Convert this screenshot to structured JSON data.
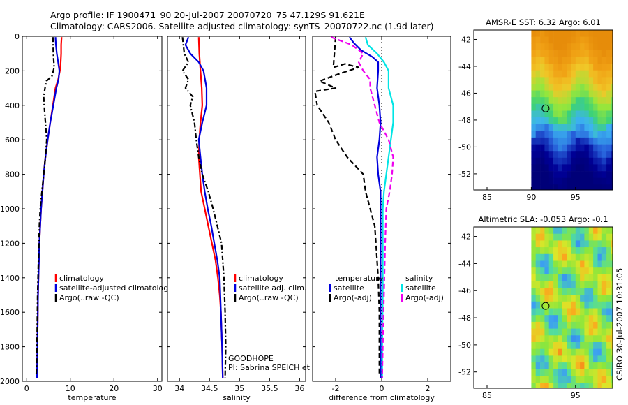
{
  "title": {
    "line1": "Argo profile: IF 1900471_90 20-Jul-2007 20070720_75 47.129S 91.621E",
    "line2": "Climatology: CARS2006. Satellite-adjusted climatology: synTS_20070722.nc (1.9d later)"
  },
  "side_label": "CSIRO 30-Jul-2007 10:31:05",
  "colors": {
    "climatology": "#ff0000",
    "satellite": "#0000dd",
    "argo": "#000000",
    "salinity_satellite": "#00e5e5",
    "salinity_argo": "#ee00ee"
  },
  "chart_data": [
    {
      "type": "line",
      "id": "temperature",
      "xlabel": "temperature",
      "xlim": [
        -1,
        31
      ],
      "ylim": [
        2000,
        0
      ],
      "xticks": [
        0,
        10,
        20,
        30
      ],
      "yticks": [
        0,
        200,
        400,
        600,
        800,
        1000,
        1200,
        1400,
        1600,
        1800,
        2000
      ],
      "ytick_labels": [
        "0",
        "200",
        "400",
        "600",
        "800",
        "1000",
        "1200",
        "1400",
        "1600",
        "1800",
        "2000"
      ],
      "legend": [
        "climatology",
        "satellite-adjusted climatology",
        "Argo(..raw -QC)"
      ],
      "series": [
        {
          "name": "climatology",
          "color": "#ff0000",
          "dash": "",
          "x": [
            8.0,
            7.9,
            7.9,
            7.8,
            7.6,
            7.2,
            6.6,
            6.0,
            5.4,
            4.8,
            4.3,
            3.9,
            3.6,
            3.3,
            3.1,
            2.9,
            2.8,
            2.7,
            2.6,
            2.55,
            2.5,
            2.45,
            2.4,
            2.4
          ],
          "y": [
            5,
            50,
            100,
            150,
            200,
            250,
            300,
            400,
            500,
            600,
            700,
            800,
            900,
            1000,
            1100,
            1200,
            1300,
            1400,
            1500,
            1600,
            1700,
            1800,
            1900,
            1960
          ]
        },
        {
          "name": "satellite-adjusted climatology",
          "color": "#0000dd",
          "dash": "",
          "x": [
            6.6,
            6.7,
            6.9,
            7.2,
            7.5,
            7.3,
            6.8,
            6.1,
            5.4,
            4.8,
            4.3,
            3.9,
            3.6,
            3.3,
            3.1,
            2.9,
            2.8,
            2.7,
            2.6,
            2.55,
            2.5,
            2.45,
            2.4,
            2.35
          ],
          "y": [
            5,
            50,
            100,
            150,
            200,
            250,
            300,
            400,
            500,
            600,
            700,
            800,
            900,
            1000,
            1100,
            1200,
            1300,
            1400,
            1500,
            1600,
            1700,
            1800,
            1900,
            1980
          ]
        },
        {
          "name": "Argo(..raw -QC)",
          "color": "#000000",
          "dash": "7,3,2,3",
          "x": [
            6.0,
            6.1,
            6.3,
            5.8,
            4.5,
            4.2,
            3.9,
            4.0,
            4.3,
            4.6,
            4.3,
            3.9,
            3.5,
            3.1,
            2.9,
            2.8,
            2.7,
            2.6,
            2.5,
            2.45,
            2.4,
            2.35,
            2.3,
            2.2
          ],
          "y": [
            5,
            100,
            180,
            230,
            260,
            300,
            350,
            400,
            500,
            600,
            700,
            800,
            900,
            1000,
            1100,
            1200,
            1300,
            1400,
            1500,
            1600,
            1700,
            1800,
            1900,
            1960
          ]
        }
      ]
    },
    {
      "type": "line",
      "id": "salinity",
      "xlabel": "salinity",
      "xlim": [
        33.8,
        36.1
      ],
      "ylim": [
        2000,
        0
      ],
      "xticks": [
        34,
        34.5,
        35,
        35.5,
        36
      ],
      "xtick_labels": [
        "34",
        "34.5",
        "35",
        "35.5",
        "36"
      ],
      "legend": [
        "climatology",
        "satellite adj. clim.",
        "Argo(..raw -QC)"
      ],
      "annotations": [
        "GOODHOPE",
        "PI: Sabrina SPEICH et Michel ARHAN"
      ],
      "series": [
        {
          "name": "climatology",
          "color": "#ff0000",
          "dash": "",
          "x": [
            34.32,
            34.33,
            34.35,
            34.37,
            34.38,
            34.35,
            34.33,
            34.32,
            34.34,
            34.36,
            34.42,
            34.48,
            34.54,
            34.6,
            34.64,
            34.67,
            34.69,
            34.71,
            34.72
          ],
          "y": [
            5,
            100,
            200,
            300,
            400,
            500,
            600,
            700,
            800,
            900,
            1000,
            1100,
            1200,
            1300,
            1400,
            1500,
            1600,
            1800,
            1980
          ]
        },
        {
          "name": "satellite adj. clim.",
          "color": "#0000dd",
          "dash": "",
          "x": [
            34.15,
            34.1,
            34.18,
            34.32,
            34.4,
            34.45,
            34.45,
            34.38,
            34.32,
            34.35,
            34.38,
            34.42,
            34.47,
            34.53,
            34.58,
            34.63,
            34.67,
            34.69,
            34.71,
            34.72
          ],
          "y": [
            5,
            50,
            100,
            150,
            200,
            300,
            400,
            500,
            600,
            700,
            800,
            900,
            1000,
            1100,
            1200,
            1300,
            1400,
            1600,
            1800,
            1980
          ]
        },
        {
          "name": "Argo(..raw -QC)",
          "color": "#000000",
          "dash": "7,3,2,3",
          "x": [
            34.05,
            34.08,
            34.15,
            34.05,
            34.15,
            34.1,
            34.22,
            34.18,
            34.25,
            34.28,
            34.32,
            34.38,
            34.48,
            34.56,
            34.63,
            34.7,
            34.74,
            34.76,
            34.77,
            34.76
          ],
          "y": [
            5,
            100,
            150,
            200,
            250,
            300,
            350,
            400,
            500,
            600,
            700,
            800,
            900,
            1000,
            1100,
            1200,
            1400,
            1600,
            1800,
            1980
          ]
        }
      ]
    },
    {
      "type": "line",
      "id": "difference",
      "xlabel": "difference from climatology",
      "xlim": [
        -3,
        3
      ],
      "ylim": [
        2000,
        0
      ],
      "xticks": [
        -2,
        0,
        2
      ],
      "xtick_labels": [
        "-2",
        "0",
        "2"
      ],
      "zero_line": true,
      "legend_temperature_title": "temperature",
      "legend_salinity_title": "salinity",
      "legend": {
        "temperature": [
          "satellite",
          "Argo(-adj)"
        ],
        "salinity": [
          "satellite",
          "Argo(-adj)"
        ]
      },
      "series": [
        {
          "name": "temperature satellite",
          "color": "#0000dd",
          "dash": "",
          "x": [
            -1.4,
            -1.2,
            -0.9,
            -0.4,
            -0.15,
            -0.15,
            -0.2,
            -0.1,
            -0.05,
            -0.1,
            -0.2,
            -0.15,
            -0.05,
            -0.05,
            -0.05,
            -0.05,
            -0.05,
            -0.05,
            -0.05,
            -0.05
          ],
          "y": [
            5,
            40,
            80,
            120,
            150,
            200,
            300,
            400,
            500,
            600,
            700,
            800,
            900,
            1000,
            1200,
            1400,
            1600,
            1800,
            1900,
            1980
          ]
        },
        {
          "name": "temperature Argo(-adj)",
          "color": "#000000",
          "dash": "7,4",
          "x": [
            -2.0,
            -2.1,
            -1.6,
            -1.0,
            -1.9,
            -2.7,
            -2.0,
            -2.9,
            -2.8,
            -2.3,
            -2.0,
            -1.5,
            -0.8,
            -0.7,
            -0.5,
            -0.3,
            -0.25,
            -0.15,
            -0.1,
            -0.1,
            -0.1
          ],
          "y": [
            5,
            180,
            160,
            180,
            220,
            260,
            300,
            320,
            400,
            500,
            600,
            700,
            800,
            900,
            1000,
            1100,
            1200,
            1400,
            1600,
            1800,
            1960
          ]
        },
        {
          "name": "salinity satellite",
          "color": "#00e5e5",
          "dash": "",
          "x": [
            -0.7,
            -0.6,
            -0.2,
            0.1,
            0.3,
            0.3,
            0.3,
            0.5,
            0.5,
            0.4,
            0.3,
            0.2,
            0.1,
            0.05,
            0.05,
            0.05,
            0.02,
            0.02
          ],
          "y": [
            5,
            50,
            100,
            150,
            200,
            250,
            300,
            400,
            500,
            600,
            700,
            800,
            900,
            1000,
            1200,
            1500,
            1800,
            1980
          ]
        },
        {
          "name": "salinity Argo(-adj)",
          "color": "#ee00ee",
          "dash": "7,4",
          "x": [
            -2.2,
            -1.3,
            -0.8,
            -1.0,
            -0.8,
            -0.5,
            -0.5,
            -0.3,
            -0.1,
            0.3,
            0.5,
            0.45,
            0.35,
            0.2,
            0.15,
            0.1,
            0.05,
            0.02
          ],
          "y": [
            5,
            50,
            100,
            150,
            200,
            250,
            300,
            400,
            500,
            600,
            700,
            800,
            900,
            1000,
            1200,
            1500,
            1800,
            1980
          ]
        }
      ]
    },
    {
      "type": "heatmap",
      "id": "amsre_sst",
      "title": "AMSR-E SST: 6.32  Argo: 6.01",
      "xlim": [
        83.5,
        99.2
      ],
      "ylim": [
        -53.2,
        -41.3
      ],
      "xticks": [
        85,
        90,
        95
      ],
      "yticks": [
        -42,
        -44,
        -46,
        -48,
        -50,
        -52
      ],
      "data_x_start": 90,
      "marker": {
        "lon": 91.62,
        "lat": -47.13
      }
    },
    {
      "type": "heatmap",
      "id": "altimetric_sla",
      "title": "Altimetric SLA: -0.053  Argo: -0.1",
      "xlim": [
        83.5,
        99.2
      ],
      "ylim": [
        -53.2,
        -41.3
      ],
      "xticks": [
        85,
        95
      ],
      "yticks": [
        -42,
        -44,
        -46,
        -48,
        -50,
        -52
      ],
      "data_x_start": 90,
      "marker": {
        "lon": 91.62,
        "lat": -47.13
      }
    }
  ]
}
